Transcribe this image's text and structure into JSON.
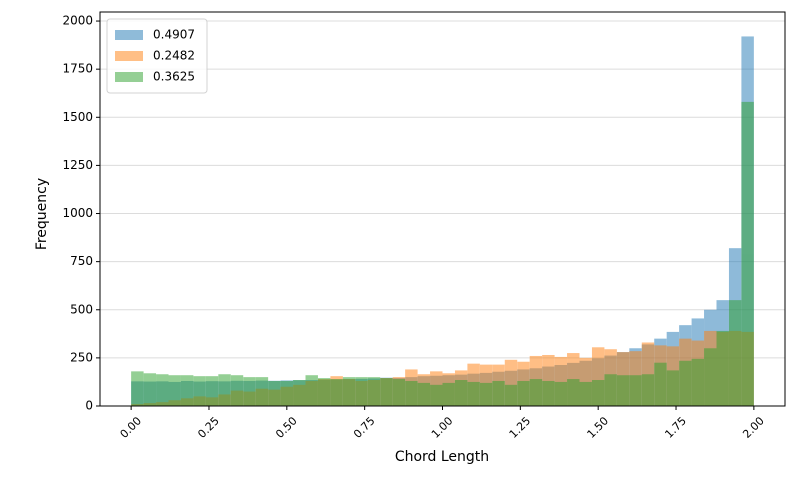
{
  "chart_data": {
    "type": "histogram",
    "xlabel": "Chord Length",
    "ylabel": "Frequency",
    "bins": [
      0,
      0.04,
      0.08,
      0.12,
      0.16,
      0.2,
      0.24,
      0.28,
      0.32,
      0.36,
      0.4,
      0.44,
      0.48,
      0.52,
      0.56,
      0.6,
      0.64,
      0.68,
      0.72,
      0.76,
      0.8,
      0.84,
      0.88,
      0.92,
      0.96,
      1,
      1.04,
      1.08,
      1.12,
      1.16,
      1.2,
      1.24,
      1.28,
      1.32,
      1.36,
      1.4,
      1.44,
      1.48,
      1.52,
      1.56,
      1.6,
      1.64,
      1.68,
      1.72,
      1.76,
      1.8,
      1.84,
      1.88,
      1.92,
      1.96,
      2
    ],
    "series": [
      {
        "name": "0.4907",
        "color": "#1f77b4",
        "values": [
          128,
          127,
          128,
          125,
          130,
          127,
          129,
          128,
          131,
          130,
          132,
          131,
          133,
          134,
          135,
          136,
          138,
          140,
          141,
          143,
          147,
          146,
          150,
          155,
          157,
          160,
          163,
          168,
          172,
          178,
          183,
          190,
          196,
          205,
          213,
          224,
          235,
          248,
          262,
          280,
          300,
          320,
          350,
          385,
          420,
          455,
          500,
          550,
          820,
          1920
        ]
      },
      {
        "name": "0.2482",
        "color": "#ff7f0e",
        "values": [
          10,
          15,
          20,
          30,
          40,
          50,
          45,
          60,
          80,
          75,
          90,
          85,
          100,
          110,
          130,
          140,
          155,
          140,
          130,
          135,
          145,
          150,
          190,
          165,
          180,
          170,
          185,
          220,
          215,
          215,
          240,
          230,
          260,
          265,
          255,
          275,
          250,
          305,
          295,
          280,
          285,
          330,
          315,
          310,
          350,
          340,
          390,
          385,
          390,
          385
        ]
      },
      {
        "name": "0.3625",
        "color": "#2ca02c",
        "values": [
          180,
          170,
          165,
          160,
          160,
          155,
          155,
          165,
          160,
          150,
          150,
          130,
          130,
          135,
          160,
          145,
          140,
          150,
          150,
          150,
          145,
          140,
          130,
          120,
          110,
          120,
          135,
          125,
          120,
          130,
          110,
          130,
          140,
          130,
          125,
          140,
          125,
          135,
          165,
          160,
          160,
          165,
          225,
          185,
          235,
          245,
          300,
          390,
          550,
          1580
        ]
      }
    ],
    "xlim": [
      -0.1,
      2.1
    ],
    "ylim": [
      0,
      2047
    ],
    "xticks": [
      {
        "value": 0,
        "label": "0.00"
      },
      {
        "value": 0.25,
        "label": "0.25"
      },
      {
        "value": 0.5,
        "label": "0.50"
      },
      {
        "value": 0.75,
        "label": "0.75"
      },
      {
        "value": 1,
        "label": "1.00"
      },
      {
        "value": 1.25,
        "label": "1.25"
      },
      {
        "value": 1.5,
        "label": "1.50"
      },
      {
        "value": 1.75,
        "label": "1.75"
      },
      {
        "value": 2,
        "label": "2.00"
      }
    ],
    "yticks": [
      0,
      250,
      500,
      750,
      1000,
      1250,
      1500,
      1750,
      2000
    ],
    "grid": true,
    "legend": "upper left",
    "opacity": 0.5
  }
}
